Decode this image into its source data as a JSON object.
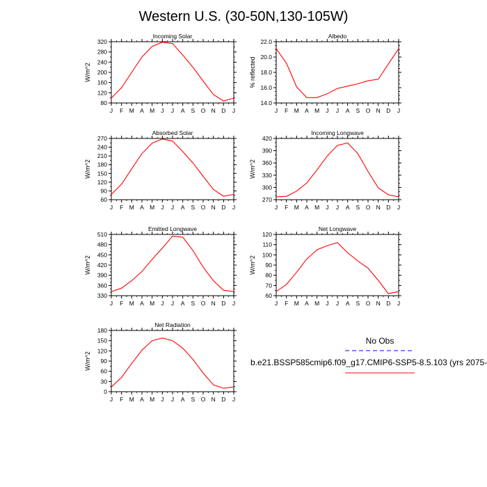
{
  "title": "Western U.S. (30-50N,130-105W)",
  "months": [
    "J",
    "F",
    "M",
    "A",
    "M",
    "J",
    "J",
    "A",
    "S",
    "O",
    "N",
    "D",
    "J"
  ],
  "colors": {
    "model_line": "#ff0000",
    "obs_line": "#0000ff"
  },
  "legend": {
    "obs_label": "No Obs",
    "model_label": "b.e21.BSSP585cmip6.f09_g17.CMIP6-SSP5-8.5.103 (yrs 2075-"
  },
  "chart_data": [
    {
      "type": "line",
      "title": "Incoming Solar",
      "ylabel": "W/m^2",
      "ylim": [
        80,
        320
      ],
      "yticks": [
        80,
        120,
        160,
        200,
        240,
        280,
        320
      ],
      "yminor": 20,
      "values": [
        99,
        140,
        200,
        260,
        302,
        318,
        313,
        268,
        220,
        166,
        113,
        88,
        99
      ]
    },
    {
      "type": "line",
      "title": "Albedo",
      "ylabel": "% reflected",
      "ylim": [
        14,
        22
      ],
      "yticks": [
        14.0,
        16.0,
        18.0,
        20.0,
        22.0
      ],
      "yminor": 0.5,
      "decimals": 1,
      "values": [
        21.1,
        19.2,
        16.1,
        14.7,
        14.7,
        15.2,
        15.9,
        16.2,
        16.5,
        16.9,
        17.1,
        19.1,
        21.1
      ]
    },
    {
      "type": "line",
      "title": "Absorbed Solar",
      "ylabel": "W/m^2",
      "ylim": [
        60,
        270
      ],
      "yticks": [
        60,
        90,
        120,
        150,
        180,
        210,
        240,
        270
      ],
      "yminor": 15,
      "values": [
        78,
        113,
        166,
        218,
        254,
        268,
        261,
        225,
        186,
        140,
        95,
        72,
        78
      ]
    },
    {
      "type": "line",
      "title": "Incoming Longwave",
      "ylabel": "W/m^2",
      "ylim": [
        270,
        420
      ],
      "yticks": [
        270,
        300,
        330,
        360,
        390,
        420
      ],
      "yminor": 10,
      "values": [
        277,
        278,
        291,
        311,
        343,
        377,
        403,
        409,
        383,
        339,
        299,
        282,
        277
      ]
    },
    {
      "type": "line",
      "title": "Emitted Longwave",
      "ylabel": "W/m^2",
      "ylim": [
        330,
        510
      ],
      "yticks": [
        330,
        360,
        390,
        420,
        450,
        480,
        510
      ],
      "yminor": 10,
      "values": [
        342,
        352,
        374,
        401,
        437,
        470,
        505,
        502,
        463,
        414,
        374,
        346,
        342
      ]
    },
    {
      "type": "line",
      "title": "Net Longwave",
      "ylabel": "W/m^2",
      "ylim": [
        60,
        120
      ],
      "yticks": [
        60,
        70,
        80,
        90,
        100,
        110,
        120
      ],
      "yminor": 5,
      "values": [
        64,
        71,
        83,
        96,
        105,
        109,
        112,
        102,
        94,
        87,
        75,
        62,
        64
      ]
    },
    {
      "type": "line",
      "title": "Net Radiation",
      "ylabel": "W/m^2",
      "ylim": [
        0,
        180
      ],
      "yticks": [
        0,
        30,
        60,
        90,
        120,
        150,
        180
      ],
      "yminor": 15,
      "values": [
        14,
        42,
        83,
        122,
        150,
        158,
        150,
        128,
        95,
        55,
        20,
        10,
        14
      ]
    }
  ]
}
